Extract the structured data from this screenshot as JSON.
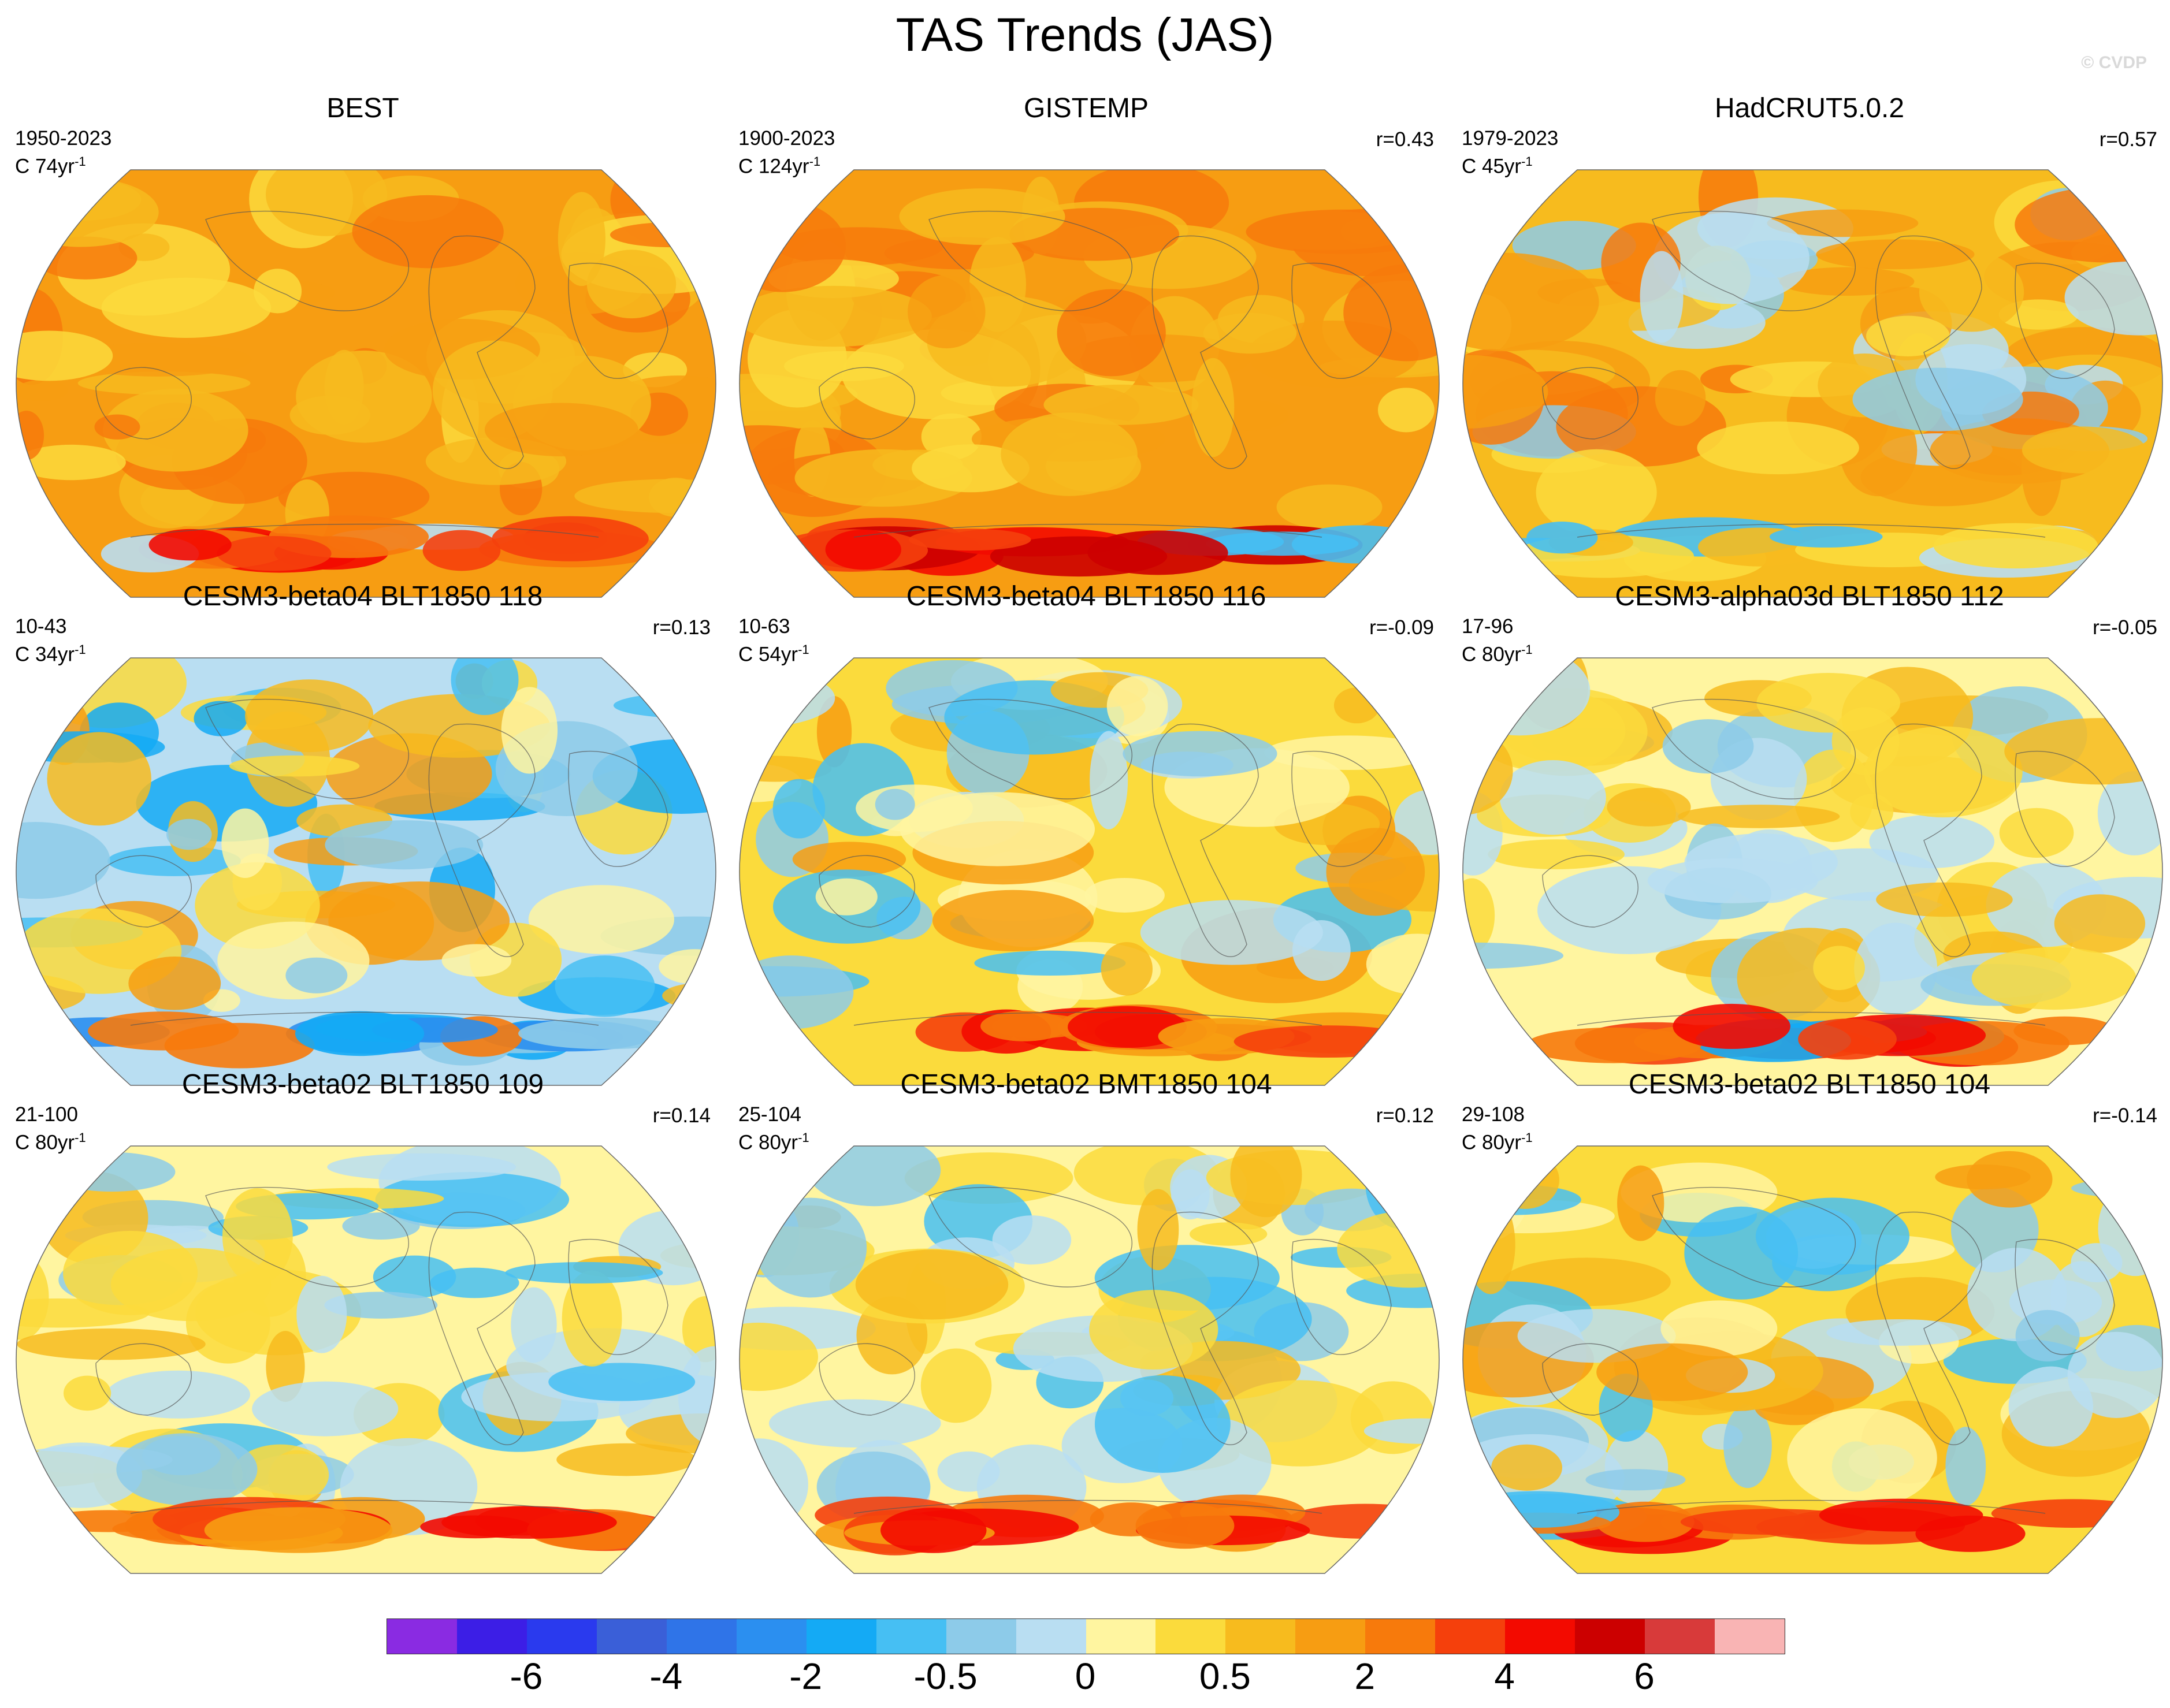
{
  "title": "TAS Trends (JAS)",
  "watermark": "© CVDP",
  "panels": [
    {
      "title": "BEST",
      "period": "1950-2023",
      "scale": "C 74yr",
      "exp": "-1",
      "r": "",
      "style": "obs_best"
    },
    {
      "title": "GISTEMP",
      "period": "1900-2023",
      "scale": "C 124yr",
      "exp": "-1",
      "r": "r=0.43",
      "style": "obs_gis"
    },
    {
      "title": "HadCRUT5.0.2",
      "period": "1979-2023",
      "scale": "C 45yr",
      "exp": "-1",
      "r": "r=0.57",
      "style": "obs_had"
    },
    {
      "title": "CESM3-beta04 BLT1850 118",
      "period": "10-43",
      "scale": "C 34yr",
      "exp": "-1",
      "r": "r=0.13",
      "style": "cool"
    },
    {
      "title": "CESM3-beta04 BLT1850 116",
      "period": "10-63",
      "scale": "C 54yr",
      "exp": "-1",
      "r": "r=-0.09",
      "style": "mixed"
    },
    {
      "title": "CESM3-alpha03d BLT1850 112",
      "period": "17-96",
      "scale": "C 80yr",
      "exp": "-1",
      "r": "r=-0.05",
      "style": "mixed2"
    },
    {
      "title": "CESM3-beta02 BLT1850 109",
      "period": "21-100",
      "scale": "C 80yr",
      "exp": "-1",
      "r": "r=0.14",
      "style": "mixed3"
    },
    {
      "title": "CESM3-beta02 BMT1850 104",
      "period": "25-104",
      "scale": "C 80yr",
      "exp": "-1",
      "r": "r=0.12",
      "style": "mixed3"
    },
    {
      "title": "CESM3-beta02 BLT1850 104",
      "period": "29-108",
      "scale": "C 80yr",
      "exp": "-1",
      "r": "r=-0.14",
      "style": "mixed4"
    }
  ],
  "colorbar": {
    "colors": [
      "#8a2be2",
      "#3c1ee6",
      "#2a3aee",
      "#3a5fd8",
      "#2f74e8",
      "#2b8ff0",
      "#14aaf5",
      "#46bff3",
      "#8dcbe9",
      "#b9def2",
      "#fff5a0",
      "#fbdb3c",
      "#f7bb1e",
      "#f79d12",
      "#f77a0c",
      "#f5400c",
      "#f30a00",
      "#cc0000",
      "#d83a3a",
      "#f9b4b4"
    ],
    "labels": [
      "-6",
      "-4",
      "-2",
      "-0.5",
      "0",
      "0.5",
      "2",
      "4",
      "6"
    ]
  }
}
